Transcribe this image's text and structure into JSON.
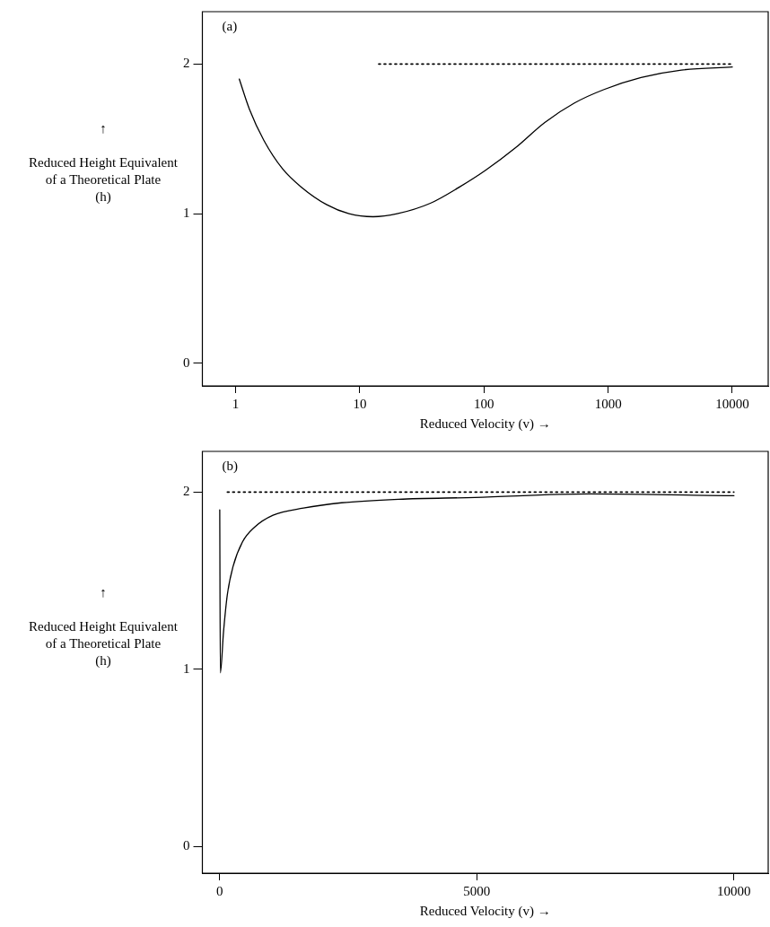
{
  "chart_data": [
    {
      "type": "line",
      "title": "(a)",
      "xlabel": "Reduced Velocity (v) →",
      "ylabel": "↑\n\nReduced Height Equivalent\nof a Theoretical Plate\n(h)",
      "log": "x",
      "xlim": [
        0.54,
        19460
      ],
      "xticks": [
        1,
        10,
        100,
        1000,
        10000
      ],
      "ylim": [
        -0.15,
        2.35
      ],
      "yticks": [
        0,
        1,
        2
      ],
      "grid": false,
      "legend": false,
      "marker": "none",
      "series": [
        {
          "color": "#000000",
          "line_style": "solid",
          "x": [
            1.07,
            1.29,
            1.69,
            2.39,
            3.36,
            5.43,
            8.2,
            12.8,
            20,
            37,
            64,
            103,
            179,
            309,
            536,
            927,
            1841,
            3890,
            10000
          ],
          "values": [
            1.9,
            1.7,
            1.49,
            1.3,
            1.18,
            1.06,
            1.0,
            0.98,
            1.0,
            1.07,
            1.18,
            1.29,
            1.44,
            1.61,
            1.74,
            1.83,
            1.91,
            1.96,
            1.98
          ]
        },
        {
          "color": "#000000",
          "line_style": "dotted",
          "x": [
            14.2,
            10000
          ],
          "values": [
            2,
            2
          ]
        }
      ]
    },
    {
      "type": "line",
      "title": "(b)",
      "xlabel": "Reduced Velocity (v) →",
      "ylabel": "↑\n\nReduced Height Equivalent\nof a Theoretical Plate\n(h)",
      "xlim": [
        -337,
        10667
      ],
      "xticks": [
        0,
        5000,
        10000
      ],
      "ylim": [
        -0.15,
        2.23
      ],
      "yticks": [
        0,
        1,
        2
      ],
      "grid": false,
      "legend": false,
      "marker": "none",
      "series": [
        {
          "color": "#000000",
          "line_style": "solid",
          "x": [
            1,
            13,
            74,
            148,
            259,
            444,
            667,
            1037,
            1630,
            2370,
            3480,
            4960,
            7190,
            10000
          ],
          "values": [
            1.9,
            0.98,
            1.21,
            1.42,
            1.58,
            1.72,
            1.8,
            1.87,
            1.91,
            1.94,
            1.96,
            1.97,
            1.99,
            1.98
          ]
        },
        {
          "color": "#000000",
          "line_style": "dotted",
          "x": [
            148,
            10000
          ],
          "values": [
            2,
            2
          ]
        }
      ]
    }
  ]
}
